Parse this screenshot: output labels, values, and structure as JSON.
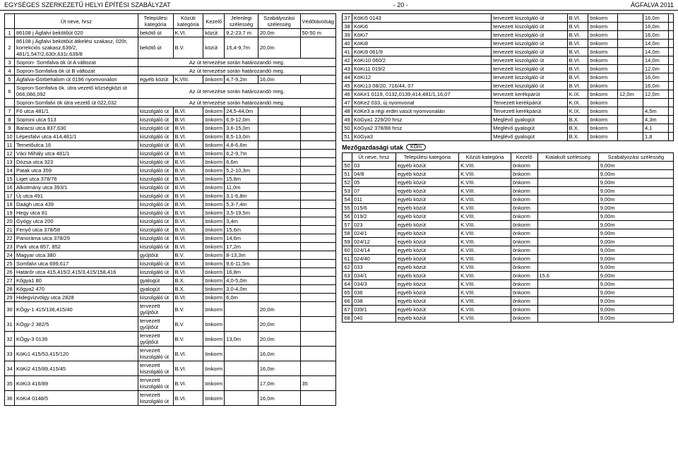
{
  "header": {
    "left": "EGYSÉGES SZERKEZETŰ HELYI ÉPÍTÉSI SZABÁLYZAT",
    "center": "- 20 -",
    "right": "ÁGFALVA 2011"
  },
  "t1": {
    "cols": [
      "",
      "Út neve, hrsz",
      "Települési kategória",
      "Közúti kategória",
      "Kezelő",
      "Jelenlegi szélesség",
      "Szabályozási szélesség",
      "Védőtávolság"
    ],
    "rows": [
      [
        "1",
        "86108 j Ágfalvi bekötőút 020",
        "bekötő út",
        "K.VI.",
        "közút",
        "9,2-23,7 m",
        "20,0m",
        "50-50 m"
      ],
      [
        "2",
        "86108 j Ágfalvi bekötőút átkelési szakasz, 020r, korrekciós szakasz,639/2, 481/1,547/2,630r,631r,639/8",
        "bekötő út",
        "B.V.",
        "közút",
        "15,4-9,7m",
        "20,0m",
        ""
      ],
      [
        "3",
        "Sopron- Somfalva ök út A változat",
        "Az út tervezése során határozandó meg.",
        "",
        "",
        "",
        "",
        ""
      ],
      [
        "4",
        "Sopron-Somfalva ök út B változat",
        "Az út tervezése során határozandó meg.",
        "",
        "",
        "",
        "",
        ""
      ],
      [
        "5",
        "Ágfalva-Görbehalom út 0196 nyomvonalon",
        "egyéb közút",
        "K.VIII.",
        "önkorm",
        "4,7-9,2m",
        "16,0m",
        ""
      ],
      [
        "6",
        "Sopron-Somfalva ök. útra vezető községközi út 066,086,092",
        "Az út tervezése során határozandó meg.",
        "",
        "",
        "",
        "",
        ""
      ],
      [
        "",
        "Sopron-Somfalvi ök útra vezető út 022,032",
        "Az út tervezése során határozandó meg.",
        "",
        "",
        "",
        "",
        ""
      ],
      [
        "7",
        "Fő utca 481/1",
        "kiszolgáló út",
        "B.VI.",
        "önkorm",
        "24,5-44,0m",
        "",
        ""
      ],
      [
        "8",
        "Soproni utca 513",
        "kiszolgáló út",
        "B.VI.",
        "önkorm",
        "6,9-12,0m",
        "",
        ""
      ],
      [
        "9",
        "Baracsi utca 837,630",
        "kiszolgáló út",
        "B.VI.",
        "önkorm",
        "3,6-15,0m",
        "",
        ""
      ],
      [
        "10",
        "Lépesfalvi utca 414,481/1",
        "kiszolgáló út",
        "B.VI.",
        "önkorm",
        "8,5-13,0m",
        "",
        ""
      ],
      [
        "11",
        "Temetőutca 16",
        "kiszolgáló út",
        "B.VI.",
        "önkorm",
        "4,8-6,6m",
        "",
        ""
      ],
      [
        "12",
        "Váci Mihály utca 481/1",
        "kiszolgáló út",
        "B.VI.",
        "önkorm",
        "6,2-9,7m",
        "",
        ""
      ],
      [
        "13",
        "Dózsa utca 323",
        "kiszolgáló út",
        "B.VI.",
        "önkorm",
        "6,6m",
        "",
        ""
      ],
      [
        "14",
        "Patak utca 359",
        "kiszolgáló út",
        "B.VI.",
        "önkorm",
        "5,2-10,3m",
        "",
        ""
      ],
      [
        "15",
        "Liget utca 378/76",
        "kiszolgáló út",
        "B.VI.",
        "önkorm",
        "15,8m",
        "",
        ""
      ],
      [
        "16",
        "Alkotmány utca 393/1",
        "kiszolgáló út",
        "B.VI.",
        "önkorm",
        "11,0m",
        "",
        ""
      ],
      [
        "17",
        "Új utca 491",
        "kiszolgáló út",
        "B.VI.",
        "önkorm",
        "3,1-6,8m",
        "",
        ""
      ],
      [
        "18",
        "Daágh utca 439",
        "kiszolgáló út",
        "B.VI.",
        "önkorm",
        "5,3-7,4m",
        "",
        ""
      ],
      [
        "19",
        "Hegy utca 81",
        "kiszolgáló út",
        "B.VI.",
        "önkorm",
        "3,5-19,5m",
        "",
        ""
      ],
      [
        "20",
        "Gyógy utca 200",
        "kiszolgáló út",
        "B.VI.",
        "önkorm",
        "3,4m",
        "",
        ""
      ],
      [
        "21",
        "Fenyő utca 378/58",
        "kiszolgáló út",
        "B.VI.",
        "önkorm",
        "15,6m",
        "",
        ""
      ],
      [
        "22",
        "Panoráma utca 378/29",
        "kiszolgáló út",
        "B.VI.",
        "önkorm",
        "14,6m",
        "",
        ""
      ],
      [
        "23",
        "Park utca 857, 852",
        "kiszolgáló út",
        "B.VI.",
        "önkorm",
        "17,2m",
        "",
        ""
      ],
      [
        "24",
        "Magyar utca 380",
        "gyűjtőút",
        "B.V.",
        "önkorm",
        "8-13,3m",
        "",
        ""
      ],
      [
        "25",
        "Somfalvi utca 699,617",
        "kiszolgáló út",
        "B.VI.",
        "önkorm",
        "9,6-11,5m",
        "",
        ""
      ],
      [
        "26",
        "Határőr utca 415,415/2,415/3,415/158,416",
        "kiszolgáló út",
        "B.VI.",
        "önkorm",
        "16,8m",
        "",
        ""
      ],
      [
        "27",
        "Kőgya1 80",
        "gyalogút",
        "B.X.",
        "önkorm",
        "4,0-5,0m",
        "",
        ""
      ],
      [
        "28",
        "Kőgya2 470",
        "gyalogút",
        "B.X.",
        "önkorm",
        "3,0-4,0m",
        "",
        ""
      ],
      [
        "29",
        "Hidegvízvölgy utca 2828",
        "kiszolgáló út",
        "B.VI.",
        "önkorm",
        "6,0m",
        "",
        ""
      ],
      [
        "30",
        "KÖgy-1 415/136,415/40",
        "tervezett gyűjtőút",
        "B.V.",
        "önkorm",
        "",
        "20,0m",
        ""
      ],
      [
        "31",
        "KÖgy-2 382/5",
        "tervezett gyűjtőút",
        "B.V.",
        "önkorm",
        "",
        "20,0m",
        ""
      ],
      [
        "32",
        "KÖgy-3 0139",
        "tervezett gyűjtőút",
        "B.V.",
        "önkorm",
        "13,0m",
        "20,0m",
        ""
      ],
      [
        "33",
        "KöKi1 415/53,415/120",
        "tervezett kiszolgáló út",
        "B.VI.",
        "önkorm",
        "",
        "16,0m",
        ""
      ],
      [
        "34",
        "KöKi2 415/89,415/45",
        "tervezett kiszolgáló út",
        "B.VI.",
        "önkorm",
        "",
        "16,0m",
        ""
      ],
      [
        "35",
        "KöKi3 416/89",
        "tervezett kiszolgáló út",
        "B.VI.",
        "önkorm",
        "",
        "17,0m",
        "35"
      ],
      [
        "36",
        "KöKi4 0148/5",
        "tervezett kiszolgáló út",
        "B.VI.",
        "önkorm",
        "",
        "16,0m",
        ""
      ]
    ]
  },
  "t2": {
    "rows": [
      [
        "37",
        "KöKi5 0143",
        "tervezett kiszolgáló út",
        "B.VI.",
        "önkorm",
        "",
        "16,0m",
        ""
      ],
      [
        "38",
        "KöKi6",
        "tervezett kiszolgáló út",
        "B.VI.",
        "önkorm",
        "",
        "16,0m",
        ""
      ],
      [
        "39",
        "KöKi7",
        "tervezett kiszolgáló út",
        "B.VI.",
        "önkorm",
        "",
        "16,0m",
        ""
      ],
      [
        "40",
        "KöKi8",
        "tervezett kiszolgáló út",
        "B.VI.",
        "önkorm",
        "",
        "14,0m",
        ""
      ],
      [
        "41",
        "KöKi9 061/9",
        "tervezett kiszolgáló út",
        "B.VI.",
        "önkorm",
        "",
        "14,0m",
        ""
      ],
      [
        "42",
        "KöKi10 060/2",
        "tervezett kiszolgáló út",
        "B.VI.",
        "önkorm",
        "",
        "14,0m",
        ""
      ],
      [
        "43",
        "KöKi11 019/2",
        "tervezett kiszolgáló út",
        "B.VI.",
        "önkorm",
        "",
        "12,0m",
        ""
      ],
      [
        "44",
        "KöKi12",
        "tervezett kiszolgáló út",
        "B.VI.",
        "önkorm",
        "",
        "16,0m",
        ""
      ],
      [
        "45",
        "KöKi13 08/20, 716/44, 07",
        "tervezett kiszolgáló út",
        "B.VI.",
        "önkorm",
        "",
        "16,0m",
        ""
      ],
      [
        "46",
        "KöKe1 0119, 0132,0139,414,481/1,16,07",
        "tervezett kerékpárút",
        "K.IX.",
        "önkorm",
        "12,0m",
        "12,0m",
        ""
      ],
      [
        "47",
        "KöKe2 033, új nyomvonal",
        "Tervezett kerékpárút",
        "K.IX.",
        "önkorm",
        "",
        "",
        ""
      ],
      [
        "48",
        "KöKe3 a régi erdei vasút nyomvonalán",
        "Tervezett kerékpárút",
        "K.IX.",
        "önkorm",
        "",
        "4,5m",
        ""
      ],
      [
        "49",
        "KöGya1 229/20 hrsz",
        "Meglévő gyalogút",
        "B.X.",
        "önkorm",
        "",
        "4,3m",
        ""
      ],
      [
        "50",
        "KöGya2 378/88 hrsz",
        "Meglévő gyalogút",
        "B.X.",
        "önkorm",
        "",
        "4,1",
        ""
      ],
      [
        "51",
        "KöGya3",
        "Meglévő gyalogút",
        "B.X.",
        "önkorm",
        "",
        "1,8",
        ""
      ]
    ]
  },
  "mez": {
    "label": "Mezőgazdasági utak",
    "badge": "KÖm",
    "cols": [
      "",
      "Út neve, hrsz",
      "Települési kategória",
      "Közúti kategória",
      "Kezelő",
      "Kialakult szélesség",
      "Szabályozási szélesség"
    ],
    "rows": [
      [
        "50",
        "03",
        "egyéb közút",
        "K.VIII.",
        "önkorm",
        "",
        "9,00m"
      ],
      [
        "51",
        "04/8",
        "egyéb közút",
        "K.VIII.",
        "önkorm",
        "",
        "9,00m"
      ],
      [
        "52",
        "05",
        "egyéb közút",
        "K.VIII.",
        "önkorm",
        "",
        "9,00m"
      ],
      [
        "53",
        "07",
        "egyéb közút",
        "K.VIII.",
        "önkorm",
        "",
        "9,00m"
      ],
      [
        "54",
        "011",
        "egyéb közút",
        "K.VIII.",
        "önkorm",
        "",
        "9,00m"
      ],
      [
        "55",
        "015/6",
        "egyéb közút",
        "K.VIII.",
        "önkorm",
        "",
        "9,00m"
      ],
      [
        "56",
        "019/2",
        "egyéb közút",
        "K.VIII.",
        "önkorm",
        "",
        "9,00m"
      ],
      [
        "57",
        "023",
        "egyéb közút",
        "K.VIII.",
        "önkorm",
        "",
        "9,00m"
      ],
      [
        "58",
        "024/1",
        "egyéb közút",
        "K.VIII.",
        "önkorm",
        "",
        "9,00m"
      ],
      [
        "59",
        "024/12",
        "egyéb közút",
        "K.VIII.",
        "önkorm",
        "",
        "9,00m"
      ],
      [
        "60",
        "024/14",
        "egyéb közút",
        "K.VIII.",
        "önkorm",
        "",
        "9,00m"
      ],
      [
        "61",
        "024/40",
        "egyéb közút",
        "K.VIII.",
        "önkorm",
        "",
        "9,00m"
      ],
      [
        "62",
        "033",
        "egyéb közút",
        "K.VIII.",
        "önkorm",
        "",
        "9,00m"
      ],
      [
        "63",
        "034/1",
        "egyéb közút",
        "K.VIII.",
        "önkorm",
        "15,6",
        "9,00m"
      ],
      [
        "64",
        "034/3",
        "egyéb közút",
        "K.VIII.",
        "önkorm",
        "",
        "9,00m"
      ],
      [
        "65",
        "036",
        "egyéb közút",
        "K.VIII.",
        "önkorm",
        "",
        "9,00m"
      ],
      [
        "66",
        "038",
        "egyéb közút",
        "K.VIII.",
        "önkorm",
        "",
        "9,00m"
      ],
      [
        "67",
        "039/1",
        "egyéb közút",
        "K.VIII.",
        "önkorm",
        "",
        "9,00m"
      ],
      [
        "68",
        "040",
        "egyéb közút",
        "K.VIII.",
        "önkorm",
        "",
        "9,00m"
      ]
    ]
  }
}
